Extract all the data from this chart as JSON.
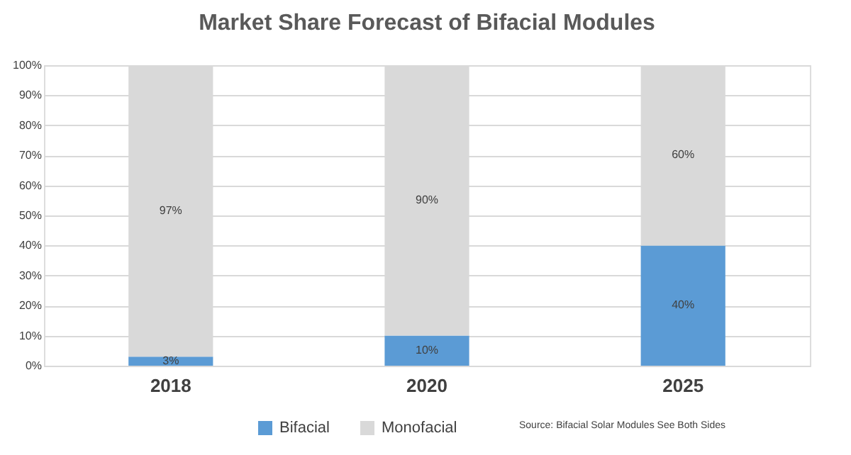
{
  "chart_data": {
    "type": "bar",
    "title": "Market Share Forecast of Bifacial Modules",
    "categories": [
      "2018",
      "2020",
      "2025"
    ],
    "stacked": true,
    "series": [
      {
        "name": "Bifacial",
        "color": "#5b9bd5",
        "values": [
          3,
          10,
          40
        ],
        "value_labels": [
          "3%",
          "10%",
          "40%"
        ]
      },
      {
        "name": "Monofacial",
        "color": "#d9d9d9",
        "values": [
          97,
          90,
          60
        ],
        "value_labels": [
          "97%",
          "90%",
          "60%"
        ]
      }
    ],
    "ylim": [
      0,
      100
    ],
    "yticks": [
      {
        "value": 0,
        "label": "0%"
      },
      {
        "value": 10,
        "label": "10%"
      },
      {
        "value": 20,
        "label": "20%"
      },
      {
        "value": 30,
        "label": "30%"
      },
      {
        "value": 40,
        "label": "40%"
      },
      {
        "value": 50,
        "label": "50%"
      },
      {
        "value": 60,
        "label": "60%"
      },
      {
        "value": 70,
        "label": "70%"
      },
      {
        "value": 80,
        "label": "80%"
      },
      {
        "value": 90,
        "label": "90%"
      },
      {
        "value": 100,
        "label": "100%"
      }
    ],
    "grid": "y",
    "legend": "bottom",
    "annotations": [
      "Source: Bifacial Solar Modules See Both Sides"
    ]
  }
}
